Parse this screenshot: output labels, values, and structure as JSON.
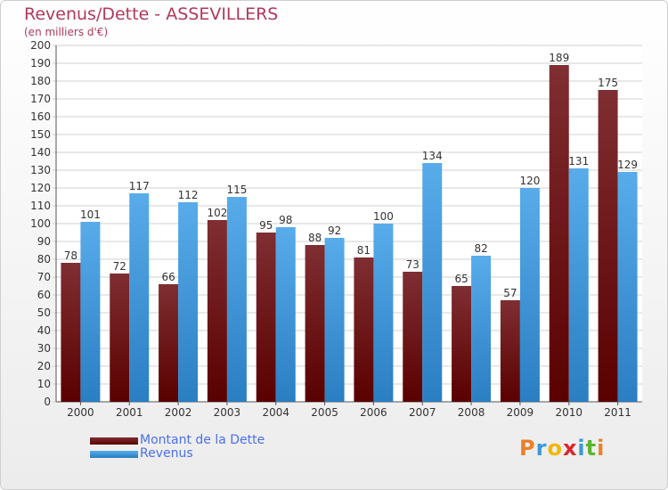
{
  "header": {
    "title": "Revenus/Dette - ASSEVILLERS",
    "subtitle": "(en milliers d'€)"
  },
  "chart_data": {
    "type": "bar",
    "categories": [
      "2000",
      "2001",
      "2002",
      "2003",
      "2004",
      "2005",
      "2006",
      "2007",
      "2008",
      "2009",
      "2010",
      "2011"
    ],
    "series": [
      {
        "name": "Montant de la Dette",
        "values": [
          78,
          72,
          66,
          102,
          95,
          88,
          81,
          73,
          65,
          57,
          189,
          175
        ],
        "color_top": "#7f2e32",
        "color_bottom": "#5a0000"
      },
      {
        "name": "Revenus",
        "values": [
          101,
          117,
          112,
          115,
          98,
          92,
          100,
          134,
          82,
          120,
          131,
          129
        ],
        "color_top": "#58acea",
        "color_bottom": "#2a7ec2"
      }
    ],
    "ylim": [
      0,
      200
    ],
    "ytick_step": 10,
    "grid": true,
    "legend_position": "bottom-left"
  },
  "logo": {
    "letters": [
      "P",
      "r",
      "o",
      "x",
      "i",
      "t",
      "i"
    ],
    "colors": [
      "#e8812a",
      "#3a9ad9",
      "#f2b700",
      "#d9262f",
      "#3a9ad9",
      "#5ab52e",
      "#e8812a"
    ]
  }
}
